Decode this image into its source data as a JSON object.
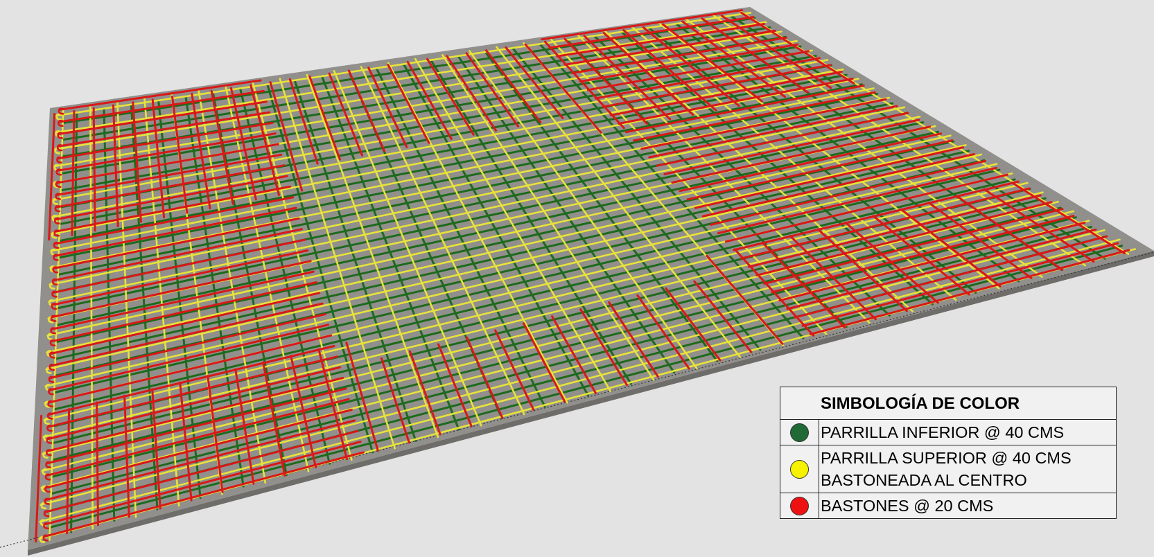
{
  "scene": {
    "colors": {
      "background": "#e3e3e3",
      "slab": "#8e8c88",
      "slab_edge": "#6f6d69",
      "bottom_grid": "#1d6a1d",
      "top_grid": "#e8e33a",
      "bastones": "#d91818"
    }
  },
  "legend": {
    "title": "SIMBOLOGÍA DE COLOR",
    "items": [
      {
        "color": "#1f6a35",
        "lines": [
          "PARRILLA INFERIOR @ 40 CMS"
        ]
      },
      {
        "color": "#f7f300",
        "lines": [
          "PARRILLA SUPERIOR @ 40 CMS",
          "BASTONEADA AL CENTRO"
        ]
      },
      {
        "color": "#ee1111",
        "lines": [
          "BASTONES @ 20 CMS"
        ]
      }
    ]
  }
}
